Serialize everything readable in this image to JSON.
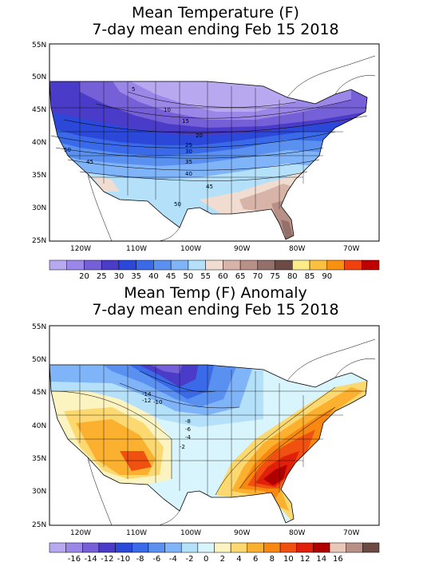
{
  "map1": {
    "title_line1": "Mean Temperature (F)",
    "title_line2": "7-day mean ending Feb 15 2018",
    "lat_ticks": [
      "55N",
      "50N",
      "45N",
      "40N",
      "35N",
      "30N",
      "25N"
    ],
    "lon_ticks": [
      "120W",
      "110W",
      "100W",
      "90W",
      "80W",
      "70W"
    ],
    "colorbar": {
      "colors": [
        "#b8a8f0",
        "#9a87e8",
        "#7660d8",
        "#4a3cc8",
        "#2b48d8",
        "#3a6ae8",
        "#5a90f0",
        "#80b4f8",
        "#b4e0fa",
        "#f0dcd0",
        "#d8b4a8",
        "#b89088",
        "#94706a",
        "#6e4a44",
        "#fcec88",
        "#fcc040",
        "#f89010",
        "#f04010",
        "#c00000"
      ],
      "labels": [
        "20",
        "25",
        "30",
        "35",
        "40",
        "45",
        "50",
        "55",
        "60",
        "65",
        "70",
        "75",
        "80",
        "85",
        "90"
      ],
      "unit": "F"
    },
    "contour_labels": [
      "5",
      "10",
      "15",
      "20",
      "25",
      "30",
      "35",
      "40",
      "45",
      "50",
      "45",
      "50"
    ]
  },
  "map2": {
    "title_line1": "Mean Temp (F) Anomaly",
    "title_line2": "7-day mean ending Feb 15 2018",
    "lat_ticks": [
      "55N",
      "50N",
      "45N",
      "40N",
      "35N",
      "30N",
      "25N"
    ],
    "lon_ticks": [
      "120W",
      "110W",
      "100W",
      "90W",
      "80W",
      "70W"
    ],
    "colorbar": {
      "colors": [
        "#b8a8f0",
        "#9a87e8",
        "#7660d8",
        "#4a3cc8",
        "#2b48d8",
        "#3a6ae8",
        "#5a90f0",
        "#80b4f8",
        "#b4e0fa",
        "#d8f4fc",
        "#fcf4c0",
        "#fcd870",
        "#fcb030",
        "#f88810",
        "#f05010",
        "#e02008",
        "#b00000",
        "#e8c8b8",
        "#b89088",
        "#6e4a44"
      ],
      "labels": [
        "-16",
        "-14",
        "-12",
        "-10",
        "-8",
        "-6",
        "-4",
        "-2",
        "0",
        "2",
        "4",
        "6",
        "8",
        "10",
        "12",
        "14",
        "16"
      ],
      "unit": "F"
    },
    "contour_labels": [
      "-14",
      "-12",
      "-10",
      "-8",
      "-6",
      "-4",
      "-2"
    ]
  }
}
